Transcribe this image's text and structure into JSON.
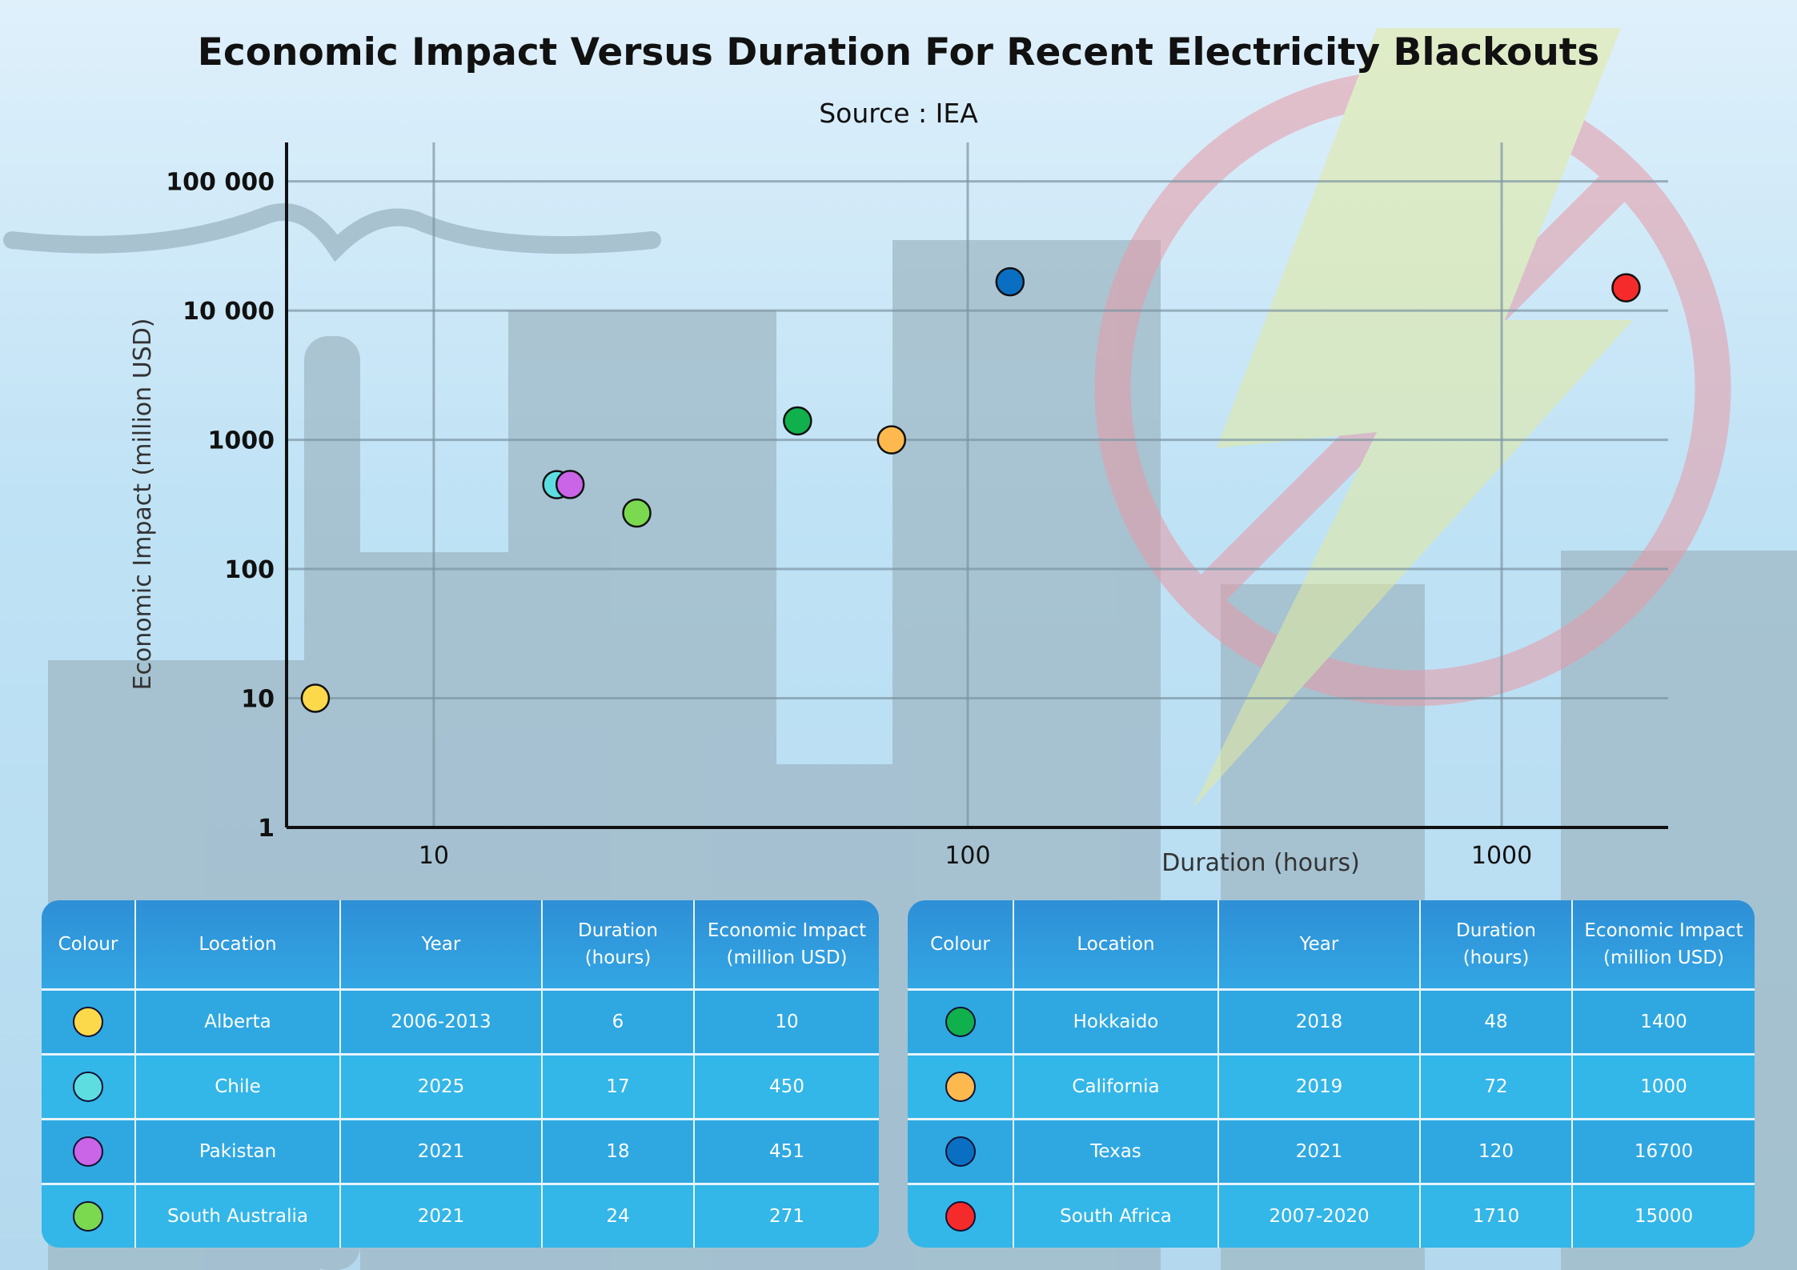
{
  "chart_data": {
    "type": "scatter",
    "title": "Economic Impact Versus Duration For Recent Electricity Blackouts",
    "subtitle": "Source : IEA",
    "xlabel": "Duration (hours)",
    "ylabel": "Economic Impact (million USD)",
    "x_scale": "log",
    "y_scale": "log",
    "xlim": [
      5.3,
      2050
    ],
    "ylim": [
      1,
      200000
    ],
    "x_ticks": [
      {
        "value": 10,
        "label": "10"
      },
      {
        "value": 100,
        "label": "100"
      },
      {
        "value": 1000,
        "label": "1000"
      }
    ],
    "y_ticks": [
      {
        "value": 1,
        "label": "1"
      },
      {
        "value": 10,
        "label": "10"
      },
      {
        "value": 100,
        "label": "100"
      },
      {
        "value": 1000,
        "label": "1000"
      },
      {
        "value": 10000,
        "label": "10 000"
      },
      {
        "value": 100000,
        "label": "100 000"
      }
    ],
    "grid": true,
    "points": [
      {
        "location": "Alberta",
        "x": 6,
        "y": 10,
        "color": "#fcd94a"
      },
      {
        "location": "Chile",
        "x": 17,
        "y": 450,
        "color": "#5ddde0"
      },
      {
        "location": "Pakistan",
        "x": 18,
        "y": 451,
        "color": "#c965e6"
      },
      {
        "location": "South Australia",
        "x": 24,
        "y": 271,
        "color": "#7ad94e"
      },
      {
        "location": "Hokkaido",
        "x": 48,
        "y": 1400,
        "color": "#10b04c"
      },
      {
        "location": "California",
        "x": 72,
        "y": 1000,
        "color": "#fdb94d"
      },
      {
        "location": "Texas",
        "x": 120,
        "y": 16700,
        "color": "#0a6fc2"
      },
      {
        "location": "South Africa",
        "x": 1710,
        "y": 15000,
        "color": "#f52a2a"
      }
    ]
  },
  "table": {
    "headers": [
      "Colour",
      "Location",
      "Year",
      "Duration (hours)",
      "Economic Impact (million USD)"
    ],
    "left_rows": [
      {
        "color": "#fcd94a",
        "location": "Alberta",
        "year": "2006-2013",
        "duration": "6",
        "impact": "10"
      },
      {
        "color": "#5ddde0",
        "location": "Chile",
        "year": "2025",
        "duration": "17",
        "impact": "450"
      },
      {
        "color": "#c965e6",
        "location": "Pakistan",
        "year": "2021",
        "duration": "18",
        "impact": "451"
      },
      {
        "color": "#7ad94e",
        "location": "South Australia",
        "year": "2021",
        "duration": "24",
        "impact": "271"
      }
    ],
    "right_rows": [
      {
        "color": "#10b04c",
        "location": "Hokkaido",
        "year": "2018",
        "duration": "48",
        "impact": "1400"
      },
      {
        "color": "#fdb94d",
        "location": "California",
        "year": "2019",
        "duration": "72",
        "impact": "1000"
      },
      {
        "color": "#0a6fc2",
        "location": "Texas",
        "year": "2021",
        "duration": "120",
        "impact": "16700"
      },
      {
        "color": "#f52a2a",
        "location": "South Africa",
        "year": "2007-2020",
        "duration": "1710",
        "impact": "15000"
      }
    ]
  }
}
